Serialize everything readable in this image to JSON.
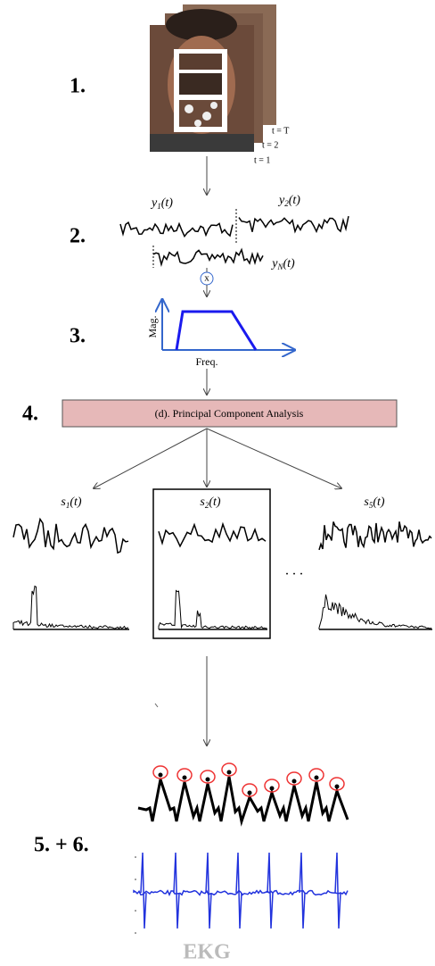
{
  "steps": [
    {
      "label": "1."
    },
    {
      "label": "2."
    },
    {
      "label": "3."
    },
    {
      "label": "4."
    },
    {
      "label": "5. + 6."
    }
  ],
  "frames": [
    "t = T",
    "t = 2",
    "t = 1"
  ],
  "signals": [
    {
      "base": "y",
      "sub": "1",
      "arg": "(t)"
    },
    {
      "base": "y",
      "sub": "2",
      "arg": "(t)"
    },
    {
      "base": "y",
      "sub": "N",
      "arg": "(t)"
    }
  ],
  "multiply": "x",
  "filter": {
    "y_axis": "Mag.",
    "x_axis": "Freq."
  },
  "pca": "(d).  Principal Component Analysis",
  "components": [
    {
      "base": "s",
      "sub": "1",
      "arg": "(t)"
    },
    {
      "base": "s",
      "sub": "2",
      "arg": "(t)"
    },
    {
      "base": "s",
      "sub": "5",
      "arg": "(t)"
    }
  ],
  "ellipsis": ". . .",
  "ekg": "EKG"
}
